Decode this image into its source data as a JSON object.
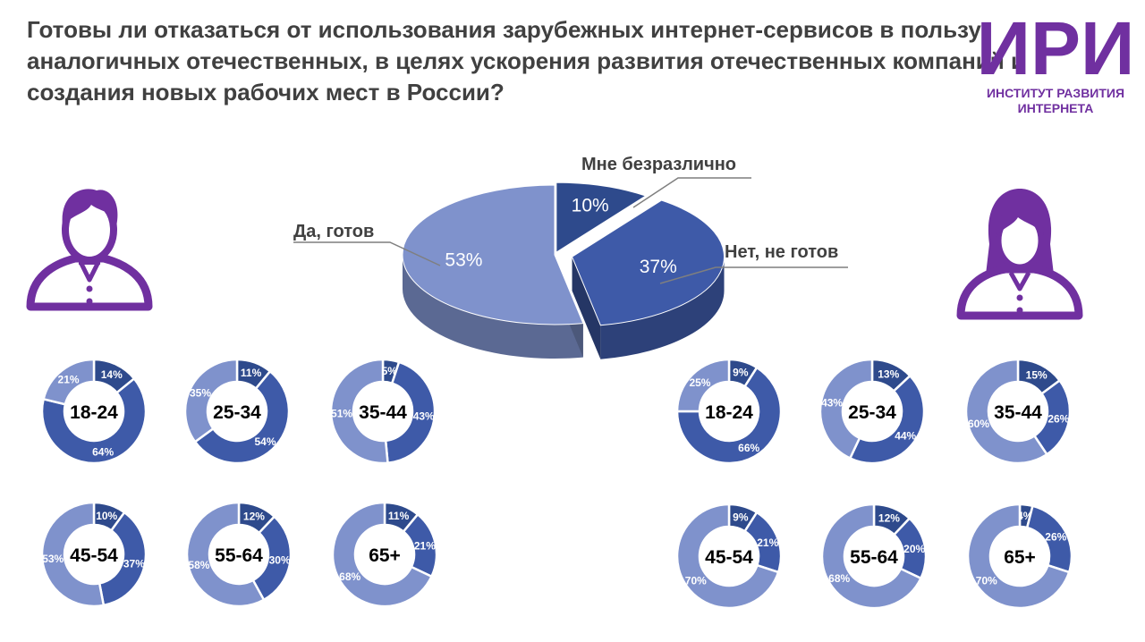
{
  "header": {
    "title_lines": [
      "Готовы ли отказаться от использования зарубежных интернет-сервисов в пользу",
      "аналогичных отечественных, в целях ускорения развития отечественных компаний и",
      "создания новых рабочих мест в России?"
    ]
  },
  "logo": {
    "mark": "ИРИ",
    "line1": "ИНСТИТУТ РАЗВИТИЯ",
    "line2": "ИНТЕРНЕТА"
  },
  "icons": {
    "left": "male-user-icon",
    "right": "female-user-icon"
  },
  "colors": {
    "yes": "#7f92cc",
    "no": "#3e5aa8",
    "indifferent": "#2e4a8c",
    "accent": "#7030a0",
    "title": "#404040"
  },
  "chart_data": [
    {
      "type": "pie",
      "categories": [
        "Мне безразлично",
        "Нет, не готов",
        "Да, готов"
      ],
      "values": [
        10,
        37,
        53
      ],
      "value_labels": [
        "10%",
        "37%",
        "53%"
      ]
    },
    {
      "type": "donut-grid",
      "group": "male",
      "categories": [
        "Мне безразлично",
        "Нет, не готов",
        "Да, готов"
      ],
      "rings": [
        {
          "label": "18-24",
          "values": [
            14,
            64,
            21
          ],
          "value_labels": [
            "14%",
            "64%",
            "21%"
          ]
        },
        {
          "label": "25-34",
          "values": [
            11,
            54,
            35
          ],
          "value_labels": [
            "11%",
            "54%",
            "35%"
          ]
        },
        {
          "label": "35-44",
          "values": [
            5,
            43,
            51
          ],
          "value_labels": [
            "5%",
            "43%",
            "51%"
          ]
        },
        {
          "label": "45-54",
          "values": [
            10,
            37,
            53
          ],
          "value_labels": [
            "10%",
            "37%",
            "53%"
          ]
        },
        {
          "label": "55-64",
          "values": [
            12,
            30,
            58
          ],
          "value_labels": [
            "12%",
            "30%",
            "58%"
          ]
        },
        {
          "label": "65+",
          "values": [
            11,
            21,
            68
          ],
          "value_labels": [
            "11%",
            "21%",
            "68%"
          ]
        }
      ]
    },
    {
      "type": "donut-grid",
      "group": "female",
      "categories": [
        "Мне безразлично",
        "Нет, не готов",
        "Да, готов"
      ],
      "rings": [
        {
          "label": "18-24",
          "values": [
            9,
            66,
            25
          ],
          "value_labels": [
            "9%",
            "66%",
            "25%"
          ]
        },
        {
          "label": "25-34",
          "values": [
            13,
            44,
            43
          ],
          "value_labels": [
            "13%",
            "44%",
            "43%"
          ]
        },
        {
          "label": "35-44",
          "values": [
            15,
            26,
            60
          ],
          "value_labels": [
            "15%",
            "26%",
            "60%"
          ]
        },
        {
          "label": "45-54",
          "values": [
            9,
            21,
            70
          ],
          "value_labels": [
            "9%",
            "21%",
            "70%"
          ]
        },
        {
          "label": "55-64",
          "values": [
            12,
            20,
            68
          ],
          "value_labels": [
            "12%",
            "20%",
            "68%"
          ]
        },
        {
          "label": "65+",
          "values": [
            4,
            26,
            70
          ],
          "value_labels": [
            "4%",
            "26%",
            "70%"
          ]
        }
      ]
    }
  ]
}
